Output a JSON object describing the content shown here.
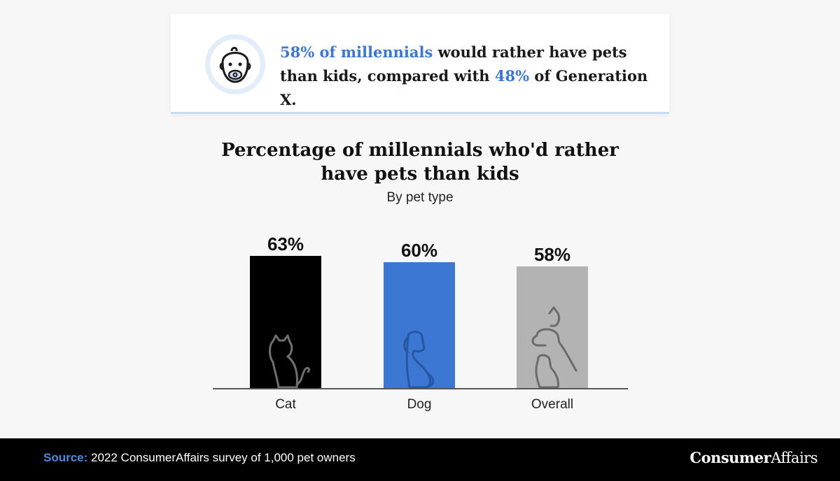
{
  "callout": {
    "icon": "baby-icon",
    "highlight_1": "58% of millennials",
    "text_1": " would rather have pets than kids, compared with ",
    "highlight_2": "48%",
    "text_2": " of Generation X."
  },
  "colors": {
    "accent": "#3d77d4",
    "cat_bar": "#000000",
    "dog_bar": "#3d77d4",
    "overall_bar": "#b3b3b3",
    "footer_bg": "#000000"
  },
  "chart_data": {
    "type": "bar",
    "title": "Percentage of millennials who'd rather have pets than kids",
    "subtitle": "By pet type",
    "categories": [
      "Cat",
      "Dog",
      "Overall"
    ],
    "values": [
      63,
      60,
      58
    ],
    "value_labels": [
      "63%",
      "60%",
      "58%"
    ],
    "bar_icons": [
      "cat-icon",
      "dog-icon",
      "pets-group-icon"
    ],
    "ylim": [
      0,
      63
    ],
    "grid": false,
    "legend": "none"
  },
  "footer": {
    "source_label": "Source:",
    "source_text": " 2022 ConsumerAffairs survey of 1,000 pet owners",
    "brand_part1": "Consumer",
    "brand_part2": "Affairs"
  }
}
